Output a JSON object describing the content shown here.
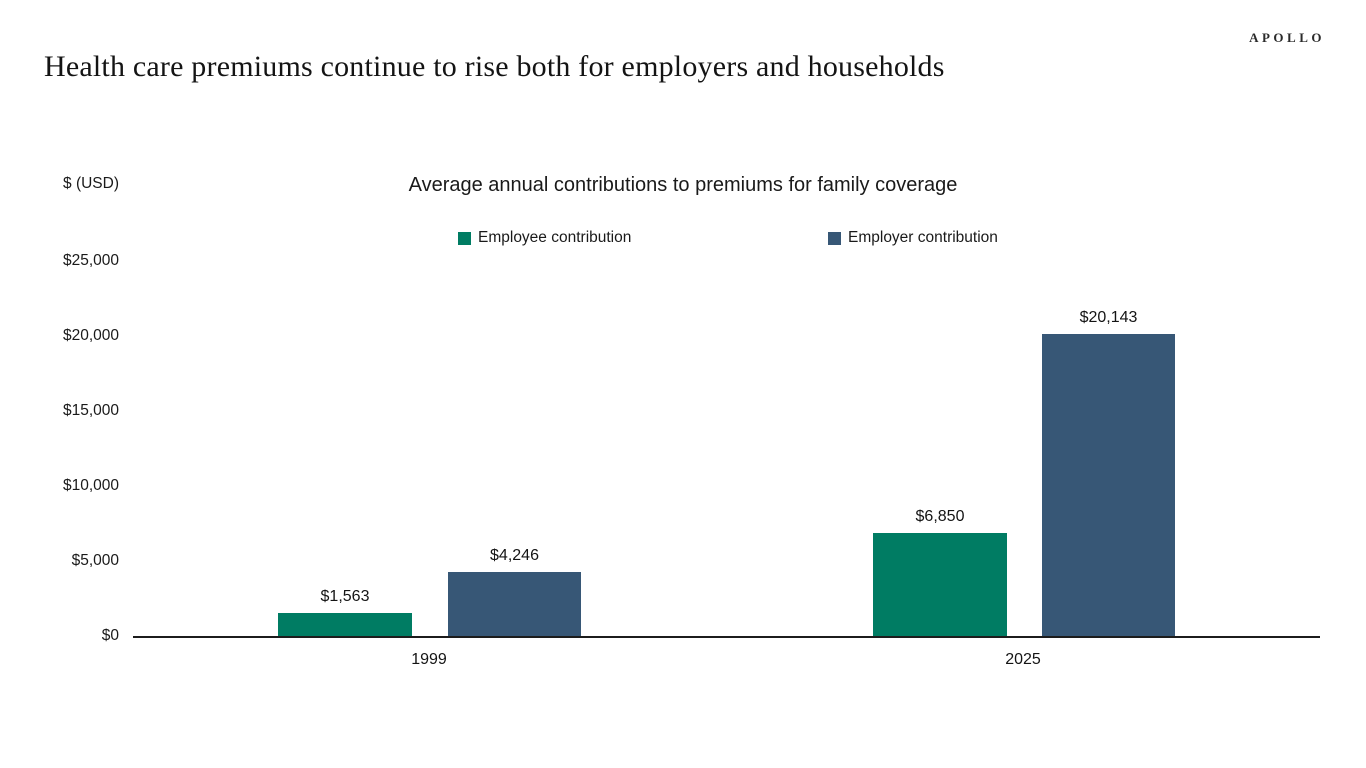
{
  "brand": {
    "logo": "APOLLO"
  },
  "page_title": "Health care premiums continue to rise both for employers and households",
  "chart_data": {
    "type": "bar",
    "title": "Average annual contributions to premiums for family coverage",
    "categories": [
      "1999",
      "2025"
    ],
    "series": [
      {
        "name": "Employee contribution",
        "color": "#007C63",
        "values": [
          1563,
          6850
        ],
        "labels": [
          "$1,563",
          "$6,850"
        ]
      },
      {
        "name": "Employer contribution",
        "color": "#375776",
        "values": [
          4246,
          20143
        ],
        "labels": [
          "$4,246",
          "$20,143"
        ]
      }
    ],
    "ylabel": "$ (USD)",
    "ylim": [
      0,
      25000
    ],
    "yticks": [
      0,
      5000,
      10000,
      15000,
      20000,
      25000
    ],
    "ytick_labels": [
      "$0",
      "$5,000",
      "$10,000",
      "$15,000",
      "$20,000",
      "$25,000"
    ],
    "grid": false,
    "legend_position": "top"
  }
}
